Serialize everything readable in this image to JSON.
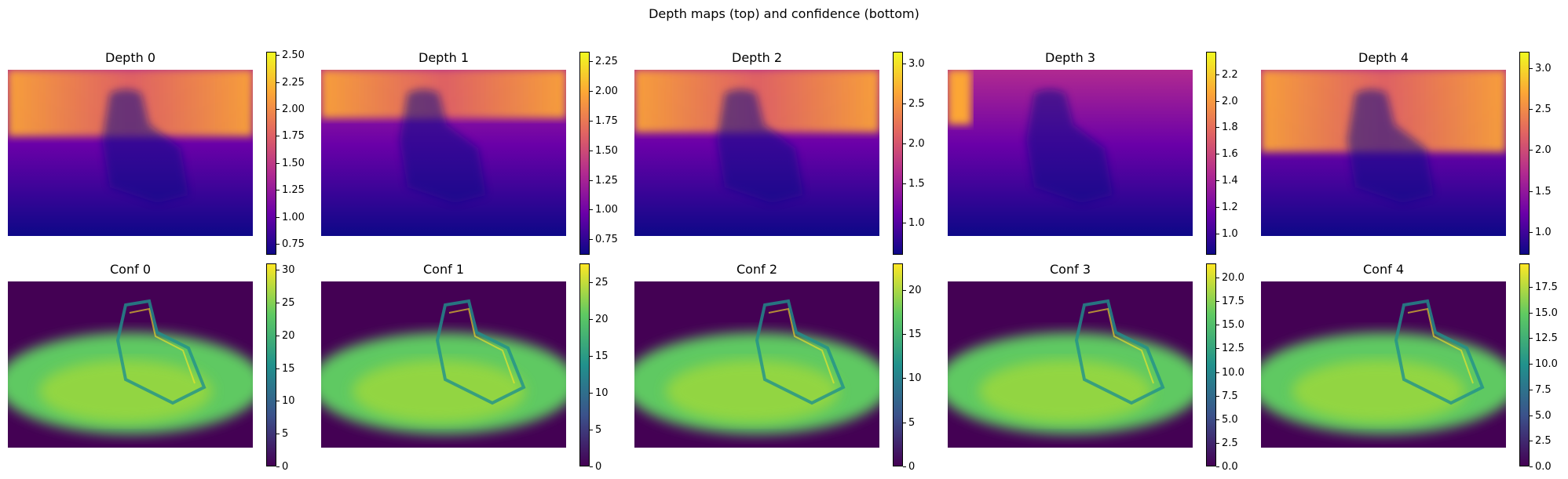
{
  "figure": {
    "title": "Depth maps (top) and confidence (bottom)"
  },
  "colors": {
    "plasma": [
      "#0d0887",
      "#6a00a8",
      "#b12a90",
      "#e16462",
      "#fca636",
      "#f0f921"
    ],
    "viridis": [
      "#440154",
      "#3b528b",
      "#21918c",
      "#5ec962",
      "#fde725"
    ]
  },
  "chart_data": [
    {
      "type": "heatmap",
      "title": "Depth 0",
      "colormap": "plasma",
      "colorbar_range": [
        0.65,
        2.53
      ],
      "ticks": [
        "0.75",
        "1.00",
        "1.25",
        "1.50",
        "1.75",
        "2.00",
        "2.25",
        "2.50"
      ]
    },
    {
      "type": "heatmap",
      "title": "Depth 1",
      "colormap": "plasma",
      "colorbar_range": [
        0.62,
        2.33
      ],
      "ticks": [
        "0.75",
        "1.00",
        "1.25",
        "1.50",
        "1.75",
        "2.00",
        "2.25"
      ]
    },
    {
      "type": "heatmap",
      "title": "Depth 2",
      "colormap": "plasma",
      "colorbar_range": [
        0.6,
        3.15
      ],
      "ticks": [
        "1.0",
        "1.5",
        "2.0",
        "2.5",
        "3.0"
      ]
    },
    {
      "type": "heatmap",
      "title": "Depth 3",
      "colormap": "plasma",
      "colorbar_range": [
        0.84,
        2.37
      ],
      "ticks": [
        "1.0",
        "1.2",
        "1.4",
        "1.6",
        "1.8",
        "2.0",
        "2.2"
      ]
    },
    {
      "type": "heatmap",
      "title": "Depth 4",
      "colormap": "plasma",
      "colorbar_range": [
        0.72,
        3.2
      ],
      "ticks": [
        "1.0",
        "1.5",
        "2.0",
        "2.5",
        "3.0"
      ]
    },
    {
      "type": "heatmap",
      "title": "Conf 0",
      "colormap": "viridis",
      "colorbar_range": [
        0,
        31
      ],
      "ticks": [
        "0",
        "5",
        "10",
        "15",
        "20",
        "25",
        "30"
      ]
    },
    {
      "type": "heatmap",
      "title": "Conf 1",
      "colormap": "viridis",
      "colorbar_range": [
        0,
        27.5
      ],
      "ticks": [
        "0",
        "5",
        "10",
        "15",
        "20",
        "25"
      ]
    },
    {
      "type": "heatmap",
      "title": "Conf 2",
      "colormap": "viridis",
      "colorbar_range": [
        0,
        23
      ],
      "ticks": [
        "0",
        "5",
        "10",
        "15",
        "20"
      ]
    },
    {
      "type": "heatmap",
      "title": "Conf 3",
      "colormap": "viridis",
      "colorbar_range": [
        0,
        21.5
      ],
      "ticks": [
        "0.0",
        "2.5",
        "5.0",
        "7.5",
        "10.0",
        "12.5",
        "15.0",
        "17.5",
        "20.0"
      ]
    },
    {
      "type": "heatmap",
      "title": "Conf 4",
      "colormap": "viridis",
      "colorbar_range": [
        0,
        19.8
      ],
      "ticks": [
        "0.0",
        "2.5",
        "5.0",
        "7.5",
        "10.0",
        "12.5",
        "15.0",
        "17.5"
      ]
    }
  ]
}
